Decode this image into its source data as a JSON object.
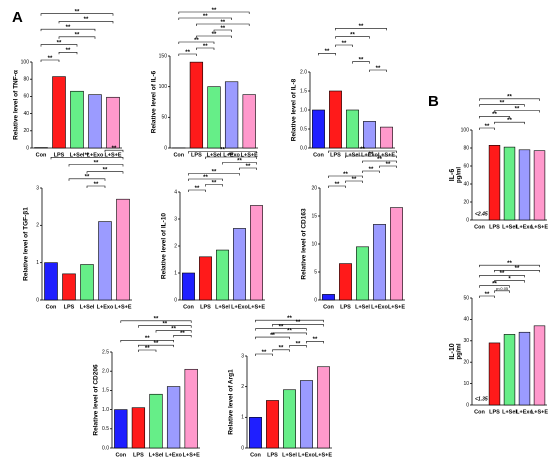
{
  "panels": [
    "A",
    "B"
  ],
  "chart_data": [
    {
      "type": "bar",
      "ylabel": "Relative level of TNF-α",
      "categories": [
        "Con",
        "LPS",
        "L+Sel",
        "L+Exo",
        "L+S+E"
      ],
      "values": [
        0.5,
        83,
        66,
        62,
        59
      ],
      "colors": [
        "#1f1fff",
        "#ff1a1a",
        "#66ee88",
        "#9b9bff",
        "#ff99cc"
      ],
      "ylim": [
        0,
        100
      ],
      "yticks": [
        0,
        20,
        40,
        60,
        80,
        100
      ],
      "brackets": [
        {
          "label": "**",
          "pair": [
            0,
            1
          ]
        },
        {
          "label": "**",
          "pair": [
            1,
            2
          ]
        },
        {
          "label": "**",
          "pair": [
            0,
            2
          ]
        },
        {
          "label": "**",
          "pair": [
            1,
            3
          ]
        },
        {
          "label": "**",
          "pair": [
            0,
            3
          ]
        },
        {
          "label": "**",
          "pair": [
            1,
            4
          ]
        },
        {
          "label": "**",
          "pair": [
            0,
            4
          ]
        }
      ]
    },
    {
      "type": "bar",
      "ylabel": "Relative level of IL-6",
      "categories": [
        "Con",
        "LPS",
        "L+Sel",
        "L+Exo",
        "L+S+E"
      ],
      "values": [
        0.3,
        140,
        100,
        108,
        87
      ],
      "colors": [
        "#1f1fff",
        "#ff1a1a",
        "#66ee88",
        "#9b9bff",
        "#ff99cc"
      ],
      "ylim": [
        0,
        150
      ],
      "yticks": [
        0,
        50,
        100,
        150
      ],
      "brackets": [
        {
          "label": "**",
          "pair": [
            0,
            1
          ]
        },
        {
          "label": "**",
          "pair": [
            1,
            2
          ]
        },
        {
          "label": "**",
          "pair": [
            0,
            2
          ]
        },
        {
          "label": "**",
          "pair": [
            1,
            3
          ]
        },
        {
          "label": "**",
          "pair": [
            2,
            3
          ]
        },
        {
          "label": "**",
          "pair": [
            1,
            4
          ]
        },
        {
          "label": "**",
          "pair": [
            0,
            3
          ]
        },
        {
          "label": "**",
          "pair": [
            0,
            4
          ]
        }
      ]
    },
    {
      "type": "bar",
      "ylabel": "Relative level of IL-8",
      "categories": [
        "Con",
        "LPS",
        "L+Sel",
        "L+Exo",
        "L+S+E"
      ],
      "values": [
        1.0,
        1.5,
        1.0,
        0.7,
        0.55
      ],
      "colors": [
        "#1f1fff",
        "#ff1a1a",
        "#66ee88",
        "#9b9bff",
        "#ff99cc"
      ],
      "ylim": [
        0,
        2
      ],
      "yticks": [
        {
          "value": 0,
          "label": "0.0"
        },
        {
          "value": 0.5,
          "label": "0.5"
        },
        {
          "value": 1,
          "label": "1.0"
        },
        {
          "value": 1.5,
          "label": "1.5"
        },
        {
          "value": 2,
          "label": "2.0"
        }
      ],
      "brackets": [
        {
          "label": "**",
          "pair": [
            3,
            4
          ]
        },
        {
          "label": "**",
          "pair": [
            2,
            3
          ]
        },
        {
          "label": "**",
          "pair": [
            0,
            1
          ]
        },
        {
          "label": "**",
          "pair": [
            1,
            2
          ]
        },
        {
          "label": "**",
          "pair": [
            1,
            3
          ]
        },
        {
          "label": "**",
          "pair": [
            1,
            4
          ]
        }
      ]
    },
    {
      "type": "bar",
      "ylabel": "Relative level of TGF-β1",
      "categories": [
        "Con",
        "LPS",
        "L+Sel",
        "L+Exo",
        "L+S+E"
      ],
      "values": [
        1.0,
        0.7,
        0.95,
        2.1,
        2.7
      ],
      "colors": [
        "#1f1fff",
        "#ff1a1a",
        "#66ee88",
        "#9b9bff",
        "#ff99cc"
      ],
      "ylim": [
        0,
        3
      ],
      "yticks": [
        0,
        1,
        2,
        3
      ],
      "brackets": [
        {
          "label": "**",
          "pair": [
            2,
            3
          ]
        },
        {
          "label": "**",
          "pair": [
            1,
            3
          ]
        },
        {
          "label": "**",
          "pair": [
            2,
            4
          ]
        },
        {
          "label": "**",
          "pair": [
            1,
            4
          ]
        },
        {
          "label": "**",
          "pair": [
            0,
            4
          ]
        },
        {
          "label": "**",
          "pair": [
            3,
            4
          ]
        }
      ]
    },
    {
      "type": "bar",
      "ylabel": "Relative level of IL-10",
      "categories": [
        "Con",
        "LPS",
        "L+Sel",
        "L+Exo",
        "L+S+E"
      ],
      "values": [
        1.0,
        1.6,
        1.85,
        2.65,
        3.5
      ],
      "colors": [
        "#1f1fff",
        "#ff1a1a",
        "#66ee88",
        "#9b9bff",
        "#ff99cc"
      ],
      "ylim": [
        0,
        4
      ],
      "yticks": [
        0,
        1,
        2,
        3,
        4
      ],
      "brackets": [
        {
          "label": "**",
          "pair": [
            0,
            1
          ]
        },
        {
          "label": "**",
          "pair": [
            1,
            2
          ]
        },
        {
          "label": "**",
          "pair": [
            0,
            2
          ]
        },
        {
          "label": "**",
          "pair": [
            0,
            3
          ]
        },
        {
          "label": "**",
          "pair": [
            3,
            4
          ]
        },
        {
          "label": "**",
          "pair": [
            2,
            4
          ]
        },
        {
          "label": "**",
          "pair": [
            1,
            4
          ]
        },
        {
          "label": "**",
          "pair": [
            0,
            4
          ]
        }
      ]
    },
    {
      "type": "bar",
      "ylabel": "Relative level of CD163",
      "categories": [
        "Con",
        "LPS",
        "L+Sel",
        "L+Exo",
        "L+S+E"
      ],
      "values": [
        1,
        6.5,
        9.5,
        13.5,
        16.5
      ],
      "colors": [
        "#1f1fff",
        "#ff1a1a",
        "#66ee88",
        "#9b9bff",
        "#ff99cc"
      ],
      "ylim": [
        0,
        20
      ],
      "yticks": [
        0,
        5,
        10,
        15,
        20
      ],
      "brackets": [
        {
          "label": "**",
          "pair": [
            0,
            1
          ]
        },
        {
          "label": "**",
          "pair": [
            1,
            2
          ]
        },
        {
          "label": "**",
          "pair": [
            0,
            2
          ]
        },
        {
          "label": "**",
          "pair": [
            2,
            3
          ]
        },
        {
          "label": "**",
          "pair": [
            3,
            4
          ]
        },
        {
          "label": "**",
          "pair": [
            2,
            4
          ]
        },
        {
          "label": "**",
          "pair": [
            1,
            4
          ]
        },
        {
          "label": "**",
          "pair": [
            0,
            4
          ]
        }
      ]
    },
    {
      "type": "bar",
      "ylabel": "Relative level of CD206",
      "categories": [
        "Con",
        "LPS",
        "L+Sel",
        "L+Exo",
        "L+S+E"
      ],
      "values": [
        1.0,
        1.05,
        1.4,
        1.6,
        2.05
      ],
      "colors": [
        "#1f1fff",
        "#ff1a1a",
        "#66ee88",
        "#9b9bff",
        "#ff99cc"
      ],
      "ylim": [
        0,
        2.5
      ],
      "yticks": [
        {
          "value": 0,
          "label": "0.0"
        },
        {
          "value": 0.5,
          "label": "0.5"
        },
        {
          "value": 1,
          "label": "1.0"
        },
        {
          "value": 1.5,
          "label": "1.5"
        },
        {
          "value": 2,
          "label": "2.0"
        },
        {
          "value": 2.5,
          "label": "2.5"
        }
      ],
      "brackets": [
        {
          "label": "**",
          "pair": [
            1,
            2
          ]
        },
        {
          "label": "**",
          "pair": [
            1,
            3
          ]
        },
        {
          "label": "**",
          "pair": [
            0,
            3
          ]
        },
        {
          "label": "**",
          "pair": [
            3,
            4
          ]
        },
        {
          "label": "**",
          "pair": [
            2,
            4
          ]
        },
        {
          "label": "**",
          "pair": [
            1,
            4
          ]
        },
        {
          "label": "**",
          "pair": [
            0,
            4
          ]
        }
      ]
    },
    {
      "type": "bar",
      "ylabel": "Relative level of Arg1",
      "categories": [
        "Con",
        "LPS",
        "L+Sel",
        "L+Exo",
        "L+S+E"
      ],
      "values": [
        1.0,
        1.55,
        1.9,
        2.2,
        2.65
      ],
      "colors": [
        "#1f1fff",
        "#ff1a1a",
        "#66ee88",
        "#9b9bff",
        "#ff99cc"
      ],
      "ylim": [
        0,
        3
      ],
      "yticks": [
        0,
        1,
        2,
        3
      ],
      "brackets": [
        {
          "label": "**",
          "pair": [
            0,
            1
          ]
        },
        {
          "label": "**",
          "pair": [
            1,
            2
          ]
        },
        {
          "label": "**",
          "pair": [
            2,
            3
          ]
        },
        {
          "label": "**",
          "pair": [
            3,
            4
          ]
        },
        {
          "label": "**",
          "pair": [
            0,
            2
          ]
        },
        {
          "label": "**",
          "pair": [
            1,
            3
          ]
        },
        {
          "label": "**",
          "pair": [
            0,
            3
          ]
        },
        {
          "label": "**",
          "pair": [
            1,
            4
          ]
        },
        {
          "label": "**",
          "pair": [
            0,
            4
          ]
        }
      ]
    },
    {
      "type": "bar",
      "ylabel": "IL-6",
      "yunit": "pg/ml",
      "note": "<2.45",
      "categories": [
        "Con",
        "LPS",
        "L+Sel",
        "L+Exo",
        "L+S+E"
      ],
      "values": [
        null,
        83,
        81,
        78,
        77
      ],
      "colors": [
        "#1f1fff",
        "#ff1a1a",
        "#66ee88",
        "#9b9bff",
        "#ff99cc"
      ],
      "ylim": [
        0,
        100
      ],
      "yticks": [
        0,
        20,
        40,
        60,
        80,
        100
      ],
      "brackets": [
        {
          "label": "**",
          "pair": [
            0,
            1
          ]
        },
        {
          "label": "**",
          "pair": [
            1,
            3
          ]
        },
        {
          "label": "**",
          "pair": [
            0,
            2
          ]
        },
        {
          "label": "**",
          "pair": [
            1,
            4
          ]
        },
        {
          "label": "**",
          "pair": [
            0,
            3
          ]
        },
        {
          "label": "**",
          "pair": [
            0,
            4
          ]
        }
      ]
    },
    {
      "type": "bar",
      "ylabel": "IL-10",
      "yunit": "pg/ml",
      "note": "<1.35",
      "categories": [
        "Con",
        "LPS",
        "L+Sel",
        "L+Exo",
        "L+S+E"
      ],
      "values": [
        null,
        29,
        33,
        34,
        37
      ],
      "colors": [
        "#1f1fff",
        "#ff1a1a",
        "#66ee88",
        "#9b9bff",
        "#ff99cc"
      ],
      "ylim": [
        0,
        50
      ],
      "yticks": [
        0,
        10,
        20,
        30,
        40,
        50
      ],
      "brackets": [
        {
          "label": "**",
          "pair": [
            0,
            1
          ]
        },
        {
          "label": "p<0.05",
          "pair": [
            1,
            2
          ]
        },
        {
          "label": "**",
          "pair": [
            0,
            2
          ]
        },
        {
          "label": "*",
          "pair": [
            1,
            3
          ]
        },
        {
          "label": "**",
          "pair": [
            0,
            3
          ]
        },
        {
          "label": "**",
          "pair": [
            1,
            4
          ]
        },
        {
          "label": "**",
          "pair": [
            0,
            4
          ]
        }
      ]
    }
  ]
}
